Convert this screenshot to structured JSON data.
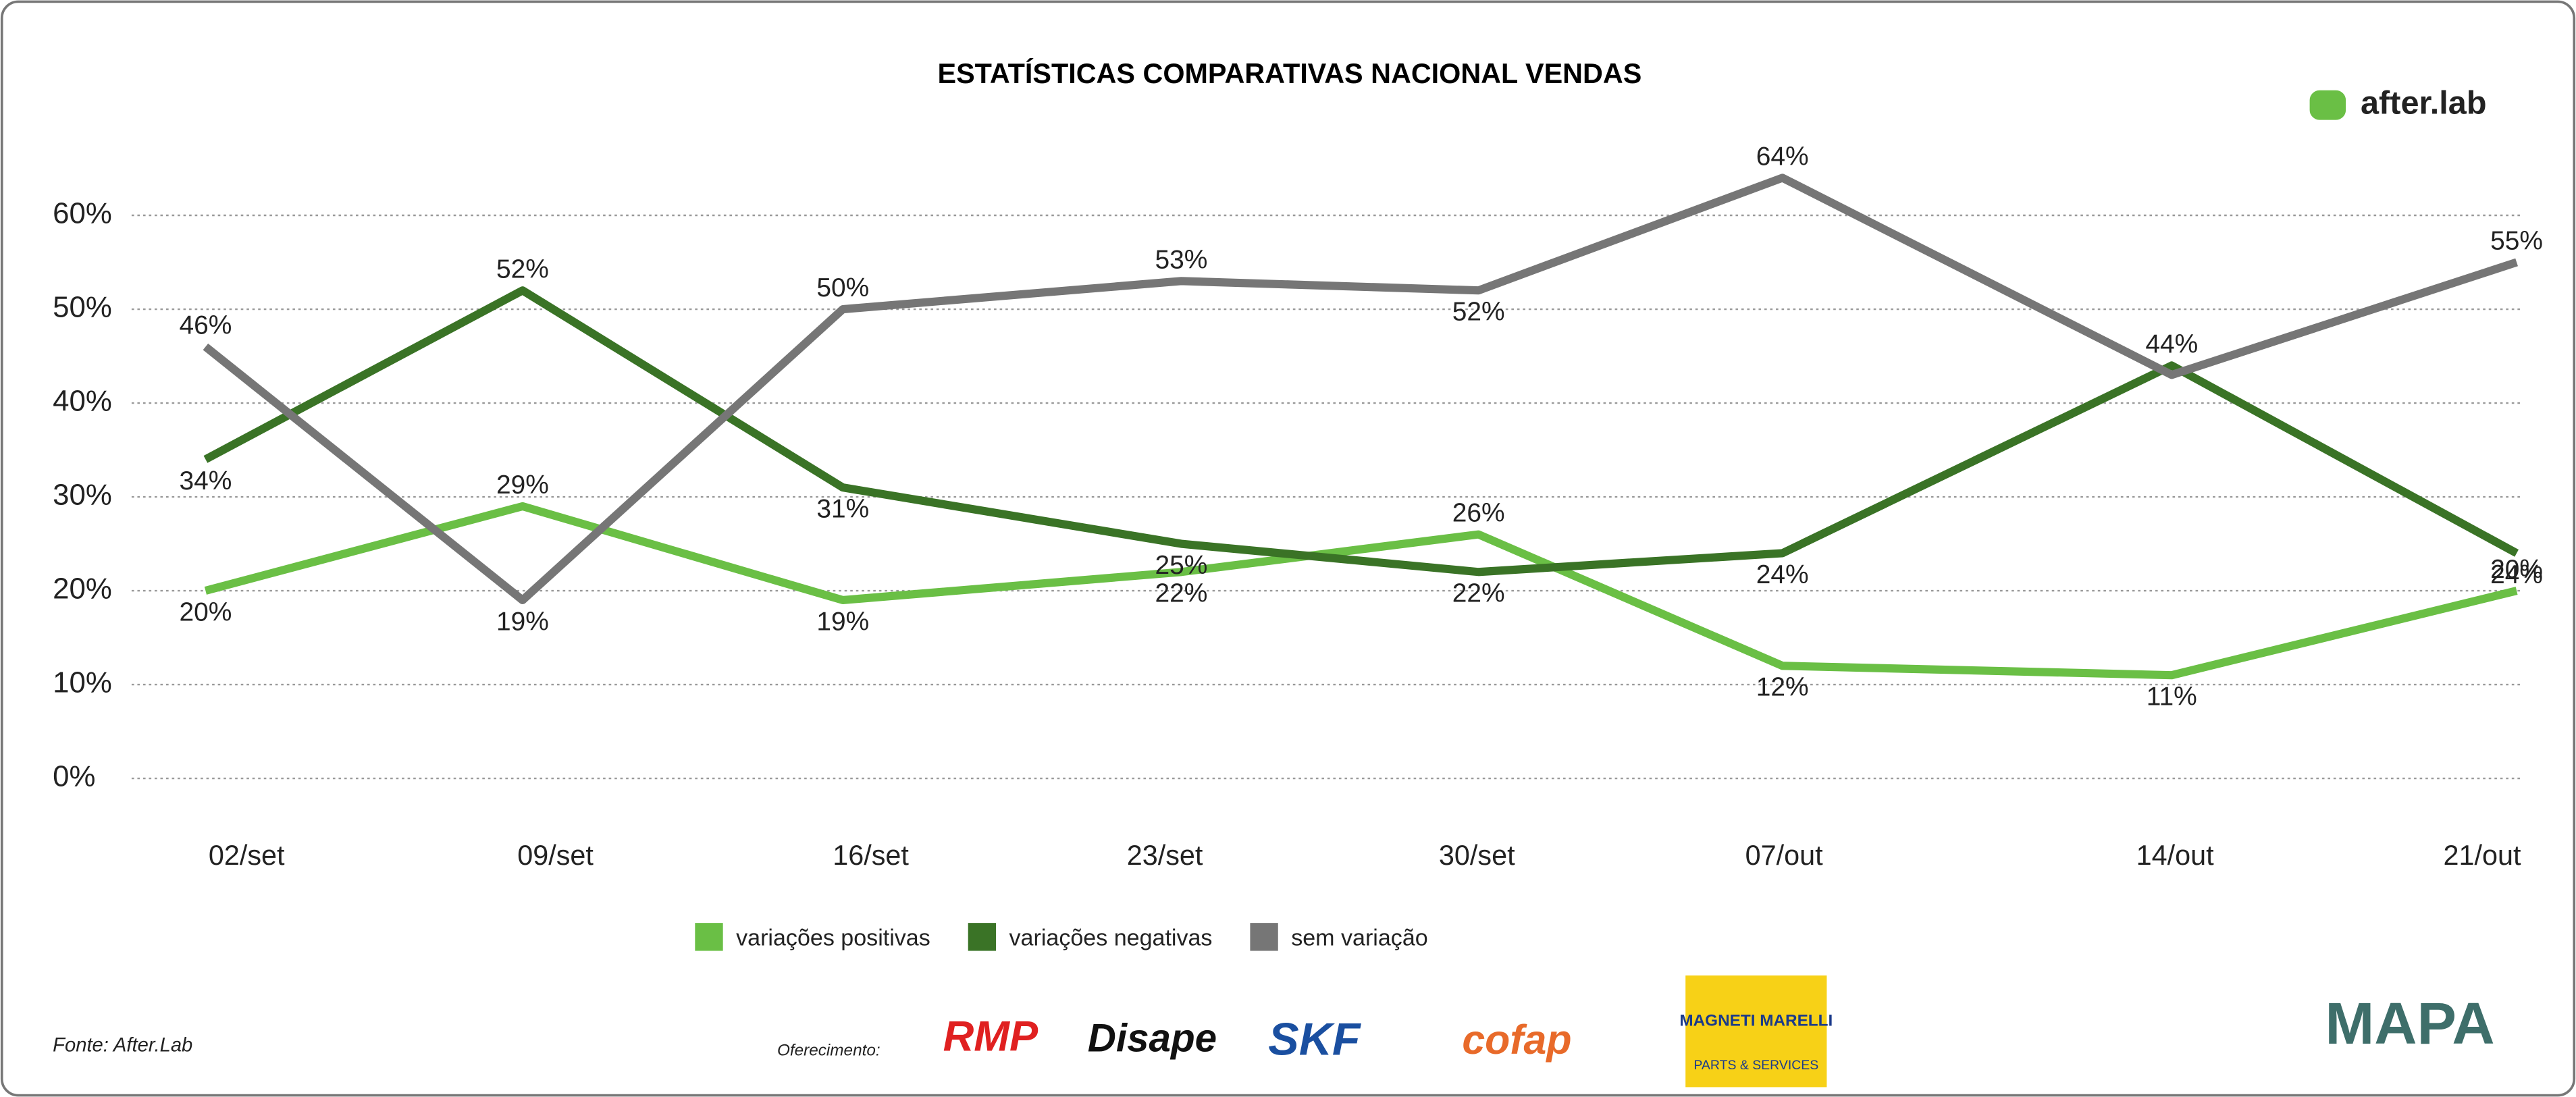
{
  "chart_data": {
    "type": "line",
    "title": "ESTATÍSTICAS COMPARATIVAS NACIONAL VENDAS",
    "categories": [
      "02/set",
      "09/set",
      "16/set",
      "23/set",
      "30/set",
      "07/out",
      "14/out",
      "21/out"
    ],
    "series": [
      {
        "name": "variações positivas",
        "color": "#6abf45",
        "values": [
          20,
          29,
          19,
          22,
          26,
          12,
          11,
          20
        ],
        "value_labels": [
          "20%",
          "29%",
          "19%",
          "22%",
          "26%",
          "12%",
          "11%",
          "20%"
        ]
      },
      {
        "name": "variações negativas",
        "color": "#3a7326",
        "values": [
          34,
          52,
          31,
          25,
          22,
          24,
          44,
          24
        ],
        "value_labels": [
          "34%",
          "52%",
          "31%",
          "25%",
          "22%",
          "24%",
          "44%",
          "24%"
        ]
      },
      {
        "name": "sem variação",
        "color": "#767676",
        "values": [
          46,
          19,
          50,
          53,
          52,
          64,
          43,
          55
        ],
        "value_labels": [
          "46%",
          "19%",
          "50%",
          "53%",
          "52%",
          "64%",
          null,
          "55%"
        ]
      }
    ],
    "ylim": [
      0,
      70
    ],
    "yticks": [
      {
        "value": 0,
        "label": "0%"
      },
      {
        "value": 10,
        "label": "10%"
      },
      {
        "value": 20,
        "label": "20%"
      },
      {
        "value": 30,
        "label": "30%"
      },
      {
        "value": 40,
        "label": "40%"
      },
      {
        "value": 50,
        "label": "50%"
      },
      {
        "value": 60,
        "label": "60%"
      }
    ],
    "grid": true,
    "legend": "bottom"
  },
  "brand": "after.lab",
  "footer": {
    "source": "Fonte: After.Lab",
    "sponsor_label": "Oferecimento:",
    "sponsors": [
      "RMP",
      "Disape",
      "SKF",
      "cofap",
      "MAGNETI MARELLI",
      "PARTS & SERVICES"
    ],
    "partner": "MAPA"
  }
}
